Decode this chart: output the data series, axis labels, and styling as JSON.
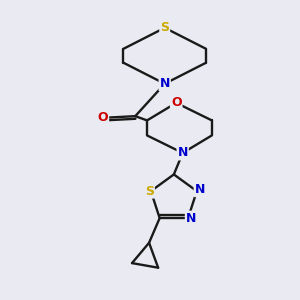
{
  "background_color": "#eaeaf2",
  "bond_color": "#1a1a1a",
  "atom_colors": {
    "S": "#ccaa00",
    "N": "#0000cc",
    "O": "#cc0000",
    "C": "#1a1a1a"
  },
  "figsize": [
    3.0,
    3.0
  ],
  "dpi": 100
}
